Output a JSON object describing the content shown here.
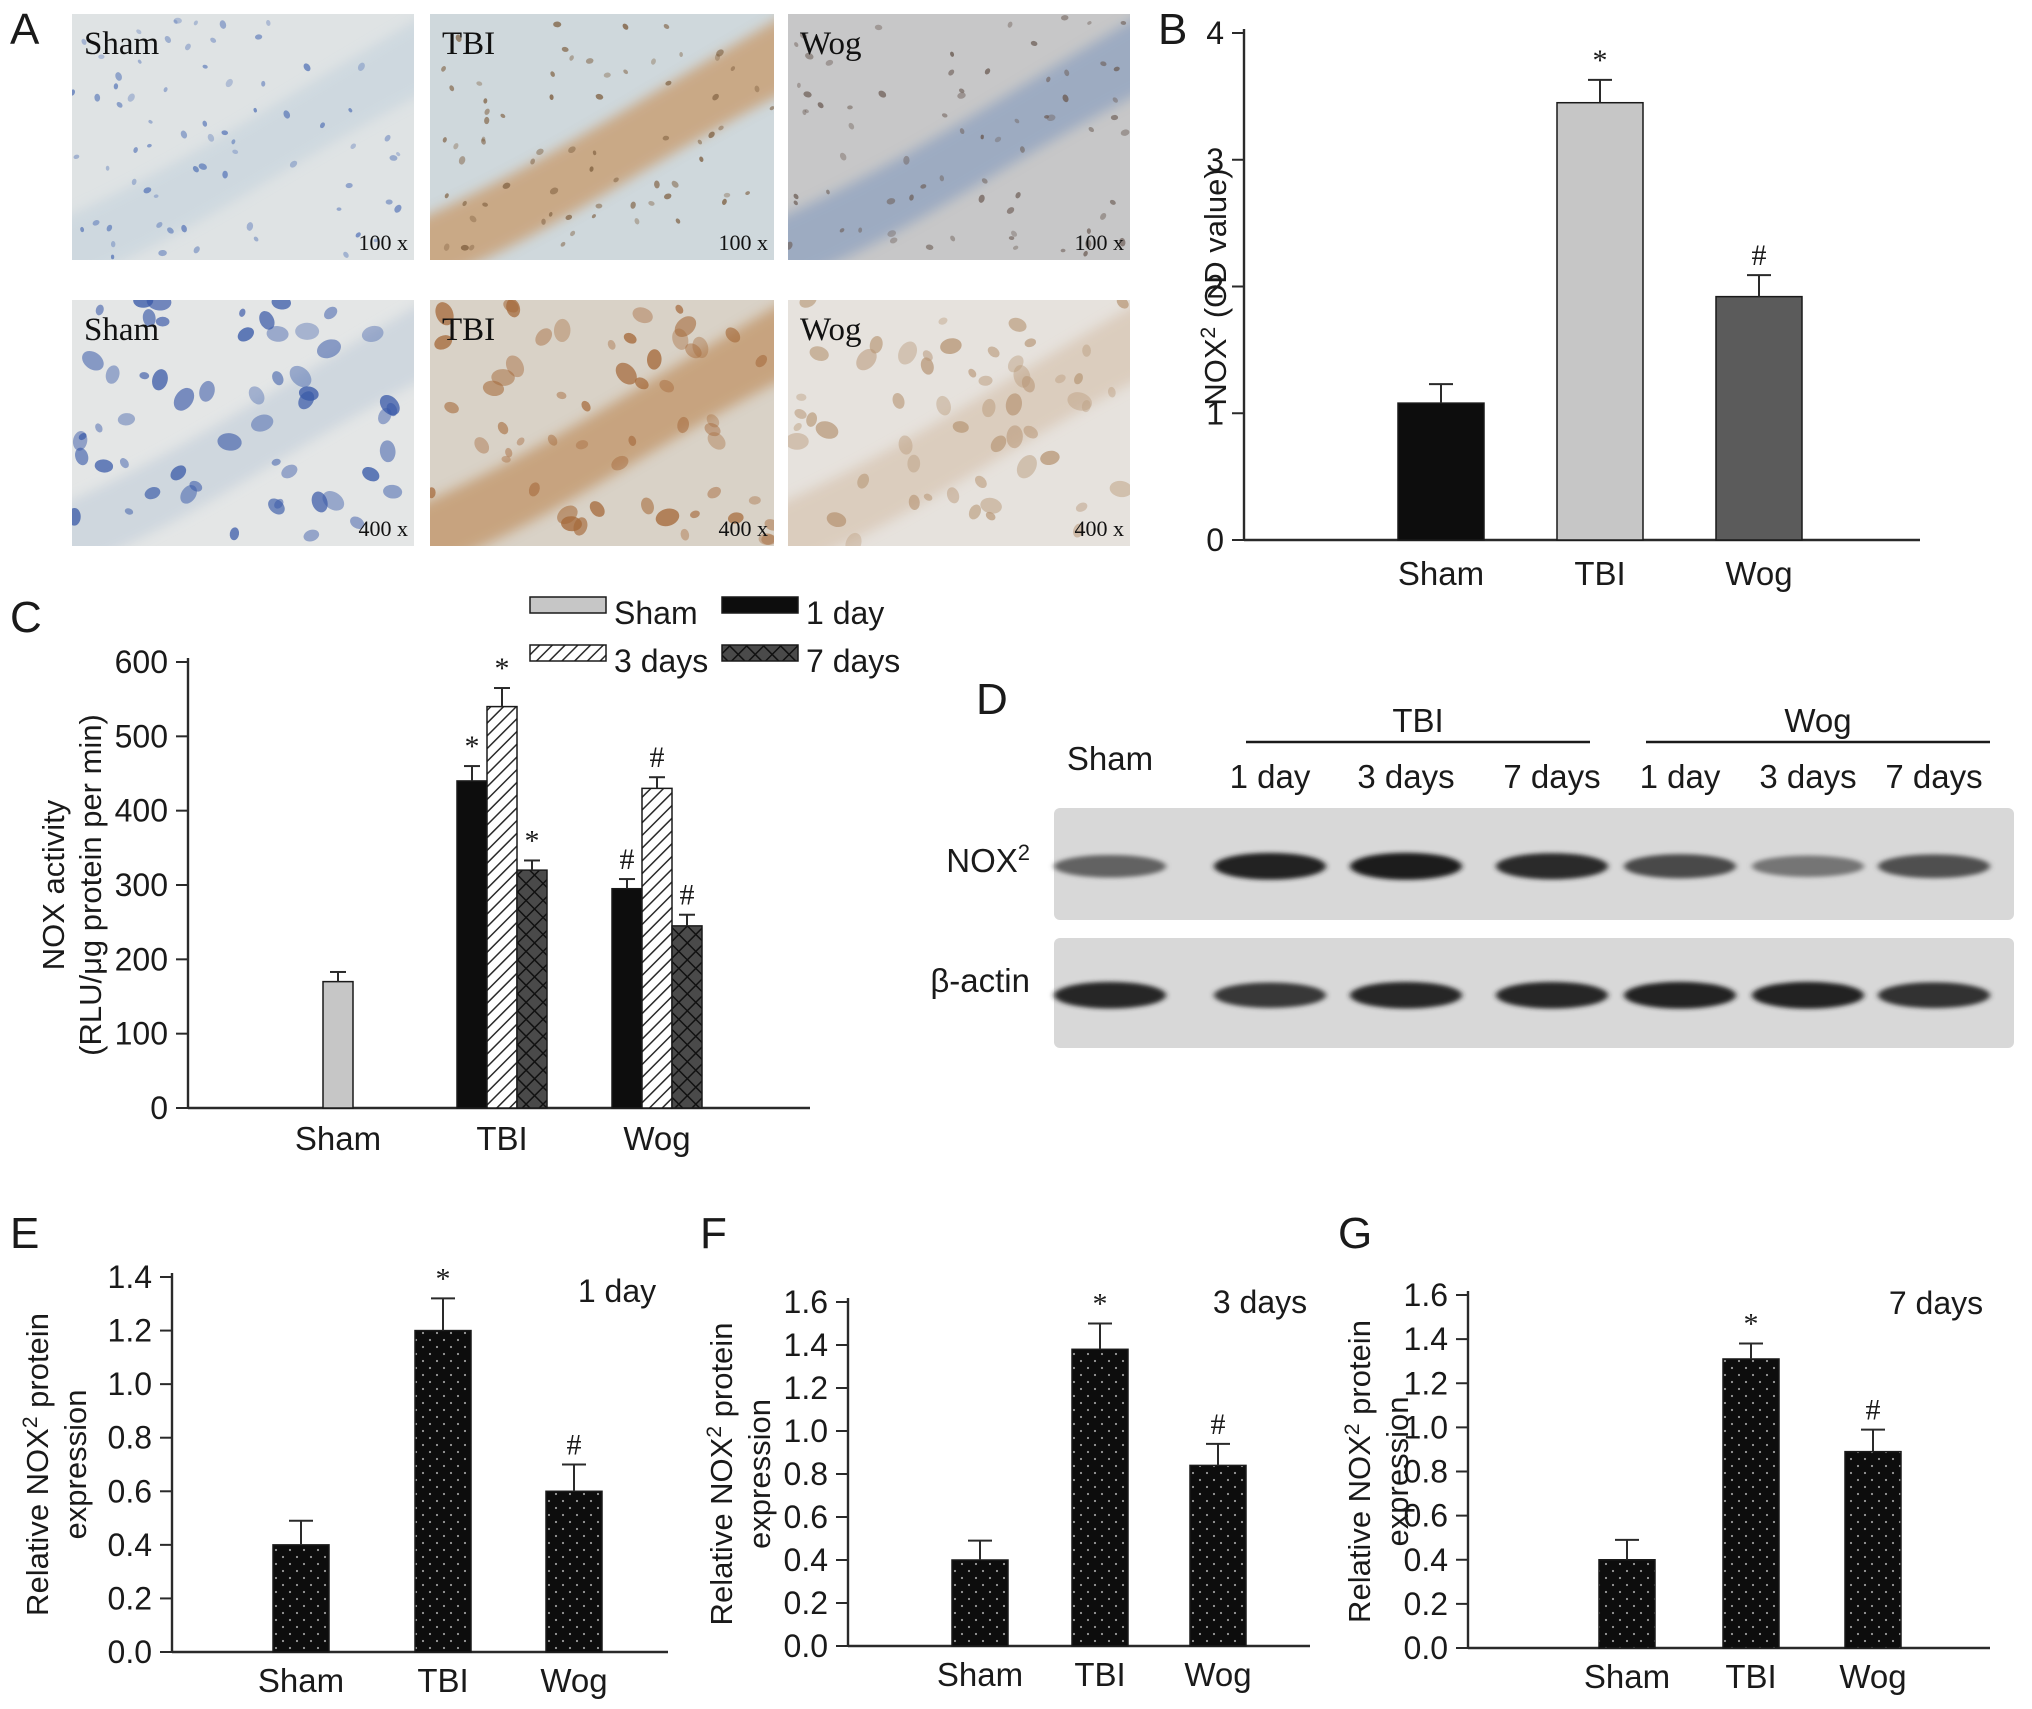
{
  "panel_letters": [
    "A",
    "B",
    "C",
    "D",
    "E",
    "F",
    "G"
  ],
  "micrographs": [
    {
      "group": "Sham",
      "magnification": "100 x",
      "tone": "#dfe3e4",
      "tint": "#c9d5de",
      "stain": "#5a78b8"
    },
    {
      "group": "TBI",
      "magnification": "100 x",
      "tone": "#cfd8dc",
      "tint": "#c89a6a",
      "stain": "#7a5a3a"
    },
    {
      "group": "Wog",
      "magnification": "100 x",
      "tone": "#c7c7c8",
      "tint": "#8fa2bf",
      "stain": "#6a5a52"
    },
    {
      "group": "Sham",
      "magnification": "400 x",
      "tone": "#e4e6e6",
      "tint": "#c8d2dc",
      "stain": "#3a5aa8"
    },
    {
      "group": "TBI",
      "magnification": "400 x",
      "tone": "#d9d2c7",
      "tint": "#c19468",
      "stain": "#a5693a"
    },
    {
      "group": "Wog",
      "magnification": "400 x",
      "tone": "#e6e2dd",
      "tint": "#d8c6b4",
      "stain": "#b89878"
    }
  ],
  "colors": {
    "black": "#0d0d0d",
    "light_gray": "#c6c6c6",
    "dark_gray": "#5b5b5b",
    "axis": "#2a2a2a",
    "blot_bg": "#d8d8d8"
  },
  "blot": {
    "groups": [
      "TBI",
      "Wog"
    ],
    "sham_label": "Sham",
    "lane_labels": [
      "1 day",
      "3 days",
      "7 days",
      "1 day",
      "3 days",
      "7 days"
    ],
    "rows": [
      {
        "label": "NOX",
        "superscript": "2",
        "intensities": [
          0.55,
          0.9,
          0.92,
          0.85,
          0.68,
          0.45,
          0.65
        ]
      },
      {
        "label": "β-actin",
        "superscript": "",
        "intensities": [
          0.88,
          0.78,
          0.88,
          0.88,
          0.9,
          0.9,
          0.82
        ]
      }
    ]
  },
  "chart_data": [
    {
      "panel": "B",
      "type": "bar",
      "categories": [
        "Sham",
        "TBI",
        "Wog"
      ],
      "values": [
        1.08,
        3.45,
        1.92
      ],
      "errors": [
        0.15,
        0.18,
        0.17
      ],
      "annotations": [
        "",
        "*",
        "#"
      ],
      "bar_colors": [
        "#0d0d0d",
        "#c6c6c6",
        "#5b5b5b"
      ],
      "ylabel": "NOX",
      "ylabel_superscript": "2",
      "ylabel_suffix": " (OD value)",
      "ylim": [
        0,
        4
      ],
      "yticks": [
        "0",
        "1",
        "2",
        "3",
        "4"
      ]
    },
    {
      "panel": "C",
      "type": "bar",
      "categories": [
        "Sham",
        "TBI",
        "Wog"
      ],
      "series": [
        {
          "name": "Sham",
          "values": [
            170,
            null,
            null
          ],
          "errors": [
            13,
            null,
            null
          ],
          "annotations": [
            "",
            "",
            ""
          ]
        },
        {
          "name": "1 day",
          "values": [
            null,
            440,
            295
          ],
          "errors": [
            null,
            20,
            13
          ],
          "annotations": [
            "",
            "*",
            "#"
          ]
        },
        {
          "name": "3 days",
          "values": [
            null,
            540,
            430
          ],
          "errors": [
            null,
            25,
            15
          ],
          "annotations": [
            "",
            "*",
            "#"
          ]
        },
        {
          "name": "7 days",
          "values": [
            null,
            320,
            245
          ],
          "errors": [
            null,
            13,
            15
          ],
          "annotations": [
            "",
            "*",
            "#"
          ]
        }
      ],
      "ylabel_line1": "NOX activity",
      "ylabel_line2": "(RLU/μg protein per min)",
      "ylim": [
        0,
        600
      ],
      "yticks": [
        "0",
        "100",
        "200",
        "300",
        "400",
        "500",
        "600"
      ],
      "legend": "top"
    },
    {
      "panel": "E",
      "type": "bar",
      "categories": [
        "Sham",
        "TBI",
        "Wog"
      ],
      "values": [
        0.4,
        1.2,
        0.6
      ],
      "errors": [
        0.09,
        0.12,
        0.1
      ],
      "annotations": [
        "",
        "*",
        "#"
      ],
      "ylabel_line1_prefix": "Relative NOX",
      "ylabel_superscript": "2",
      "ylabel_line1_suffix": " protein",
      "ylabel_line2": "expression",
      "ylim": [
        0,
        1.4
      ],
      "yticks": [
        "0.0",
        "0.2",
        "0.4",
        "0.6",
        "0.8",
        "1.0",
        "1.2",
        "1.4"
      ],
      "annotation_text": "1 day"
    },
    {
      "panel": "F",
      "type": "bar",
      "categories": [
        "Sham",
        "TBI",
        "Wog"
      ],
      "values": [
        0.4,
        1.38,
        0.84
      ],
      "errors": [
        0.09,
        0.12,
        0.1
      ],
      "annotations": [
        "",
        "*",
        "#"
      ],
      "ylabel_line1_prefix": "Relative NOX",
      "ylabel_superscript": "2",
      "ylabel_line1_suffix": " protein",
      "ylabel_line2": "expression",
      "ylim": [
        0,
        1.6
      ],
      "yticks": [
        "0.0",
        "0.2",
        "0.4",
        "0.6",
        "0.8",
        "1.0",
        "1.2",
        "1.4",
        "1.6"
      ],
      "annotation_text": "3 days"
    },
    {
      "panel": "G",
      "type": "bar",
      "categories": [
        "Sham",
        "TBI",
        "Wog"
      ],
      "values": [
        0.4,
        1.31,
        0.89
      ],
      "errors": [
        0.09,
        0.07,
        0.1
      ],
      "annotations": [
        "",
        "*",
        "#"
      ],
      "ylabel_line1_prefix": "Relative NOX",
      "ylabel_superscript": "2",
      "ylabel_line1_suffix": " protein",
      "ylabel_line2": "expression",
      "ylim": [
        0,
        1.6
      ],
      "yticks": [
        "0.0",
        "0.2",
        "0.4",
        "0.6",
        "0.8",
        "1.0",
        "1.2",
        "1.4",
        "1.6"
      ],
      "annotation_text": "7 days"
    }
  ]
}
